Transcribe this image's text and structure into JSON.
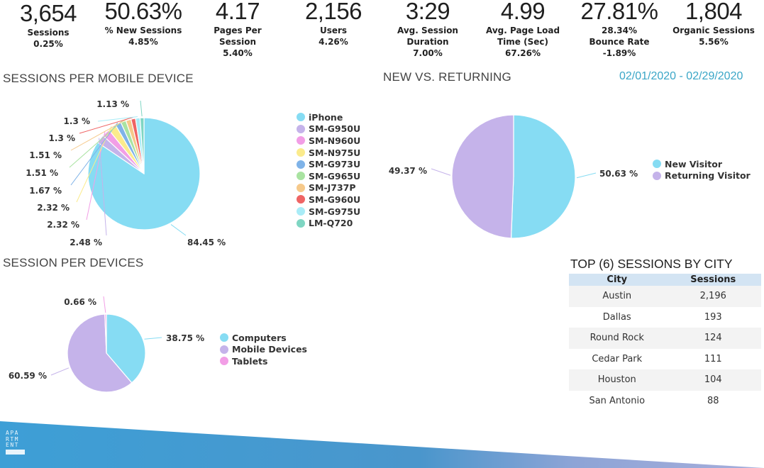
{
  "kpis": [
    {
      "value": "3,654",
      "lines": [
        "Sessions",
        "0.25%"
      ]
    },
    {
      "value": "50.63%",
      "lines": [
        "% New Sessions",
        "4.85%"
      ]
    },
    {
      "value": "4.17",
      "lines": [
        "Pages Per",
        "Session",
        "5.40%"
      ]
    },
    {
      "value": "2,156",
      "lines": [
        "Users",
        "4.26%"
      ]
    },
    {
      "value": "3:29",
      "lines": [
        "Avg. Session",
        "Duration",
        "7.00%"
      ]
    },
    {
      "value": "4.99",
      "lines": [
        "Avg. Page Load",
        "Time (Sec)",
        "67.26%"
      ]
    },
    {
      "value": "27.81%",
      "lines": [
        "28.34%",
        "Bounce Rate",
        "-1.89%"
      ]
    },
    {
      "value": "1,804",
      "lines": [
        "Organic Sessions",
        "5.56%"
      ]
    }
  ],
  "date_range": "02/01/2020 - 02/29/2020",
  "chart_data": [
    {
      "type": "pie",
      "title": "SESSIONS PER MOBILE DEVICE",
      "legend_position": "right",
      "categories": [
        "iPhone",
        "SM-G950U",
        "SM-N960U",
        "SM-N975U",
        "SM-G973U",
        "SM-G965U",
        "SM-J737P",
        "SM-G960U",
        "SM-G975U",
        "LM-Q720"
      ],
      "values": [
        84.45,
        2.48,
        2.32,
        2.32,
        1.67,
        1.51,
        1.51,
        1.3,
        1.3,
        1.13
      ],
      "labels": [
        "84.45 %",
        "2.48 %",
        "2.32 %",
        "2.32 %",
        "1.67 %",
        "1.51 %",
        "1.51 %",
        "1.3 %",
        "1.3 %",
        "1.13 %"
      ],
      "colors": [
        "#86dcf3",
        "#c5b3ea",
        "#f29ee6",
        "#fbeb8c",
        "#7fb3e8",
        "#a9e3a1",
        "#f6c98a",
        "#ef6464",
        "#a9ecf7",
        "#7fd6c3"
      ]
    },
    {
      "type": "pie",
      "title": "NEW VS. RETURNING",
      "legend_position": "right",
      "categories": [
        "New Visitor",
        "Returning Visitor"
      ],
      "values": [
        50.63,
        49.37
      ],
      "labels": [
        "50.63 %",
        "49.37 %"
      ],
      "colors": [
        "#86dcf3",
        "#c5b3ea"
      ]
    },
    {
      "type": "pie",
      "title": "SESSION PER DEVICES",
      "legend_position": "right",
      "categories": [
        "Computers",
        "Mobile Devices",
        "Tablets"
      ],
      "values": [
        38.75,
        60.59,
        0.66
      ],
      "labels": [
        "38.75 %",
        "60.59 %",
        "0.66 %"
      ],
      "colors": [
        "#86dcf3",
        "#c5b3ea",
        "#f29ee6"
      ]
    },
    {
      "type": "table",
      "title": "TOP (6) SESSIONS BY CITY",
      "columns": [
        "City",
        "Sessions"
      ],
      "rows": [
        [
          "Austin",
          "2,196"
        ],
        [
          "Dallas",
          "193"
        ],
        [
          "Round Rock",
          "124"
        ],
        [
          "Cedar Park",
          "111"
        ],
        [
          "Houston",
          "104"
        ],
        [
          "San Antonio",
          "88"
        ]
      ]
    }
  ],
  "logo": {
    "lines": [
      "APA",
      "RTM",
      "ENT"
    ]
  },
  "colors": {
    "accent": "#3aa6c7",
    "footer_start": "#3d9fd6",
    "footer_end": "#9aa8d8"
  }
}
